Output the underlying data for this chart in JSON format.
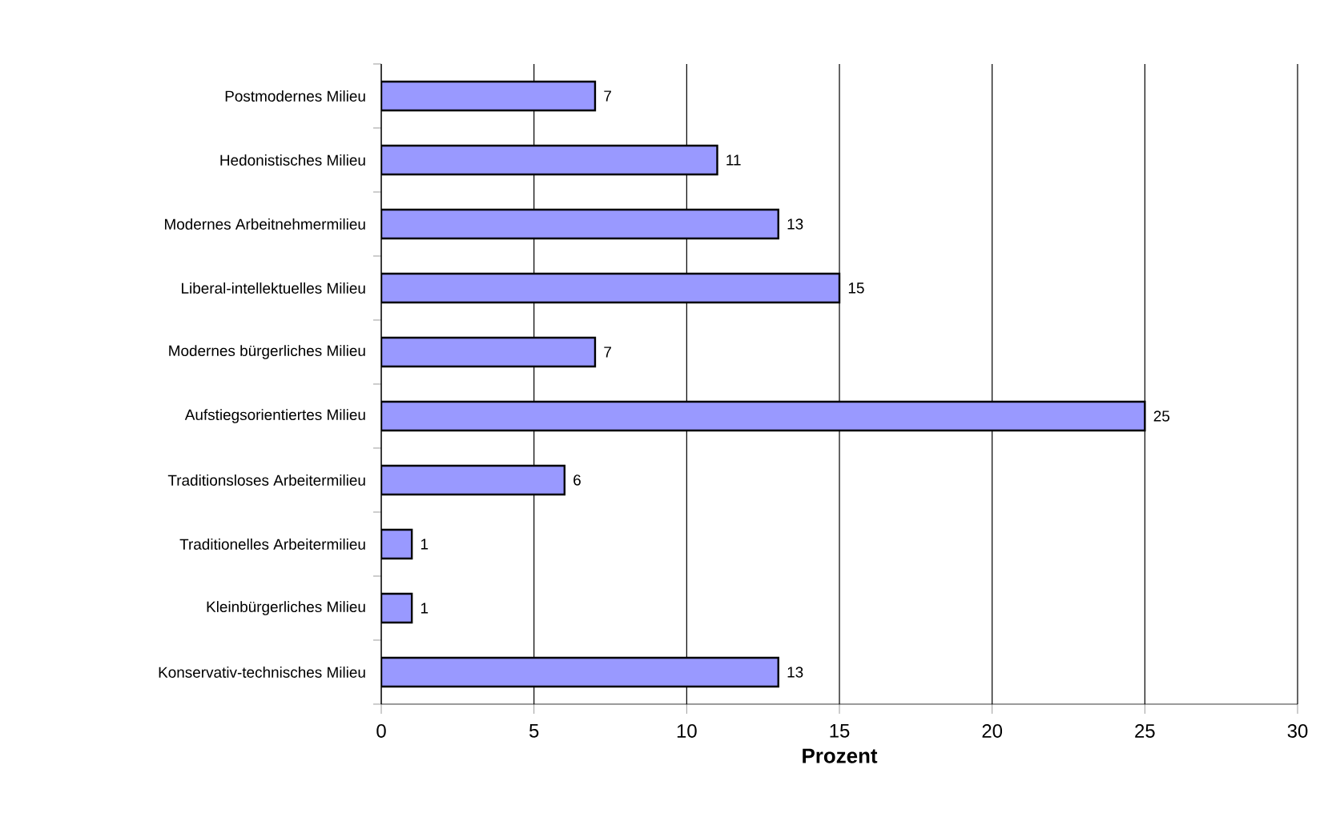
{
  "chart_data": {
    "type": "bar",
    "orientation": "horizontal",
    "xlabel": "Prozent",
    "categories": [
      "Postmodernes Milieu",
      "Hedonistisches Milieu",
      "Modernes Arbeitnehmermilieu",
      "Liberal-intellektuelles Milieu",
      "Modernes bürgerliches Milieu",
      "Aufstiegsorientiertes Milieu",
      "Traditionsloses Arbeitermilieu",
      "Traditionelles Arbeitermilieu",
      "Kleinbürgerliches Milieu",
      "Konservativ-technisches Milieu"
    ],
    "values": [
      7,
      11,
      13,
      15,
      7,
      25,
      6,
      1,
      1,
      13
    ],
    "color": "#9999ff",
    "xlim": [
      0,
      30
    ],
    "xticks": [
      0,
      5,
      10,
      15,
      20,
      25,
      30
    ],
    "grid": "x",
    "data_labels": true
  }
}
